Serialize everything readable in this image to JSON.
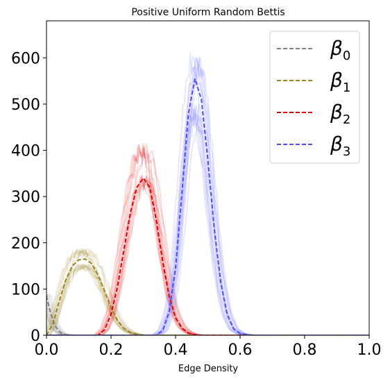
{
  "chart_data": {
    "type": "line",
    "title": "Positive Uniform Random Bettis",
    "xlabel": "Edge Density",
    "ylabel": "",
    "xlim": [
      0.0,
      1.0
    ],
    "ylim": [
      0,
      680
    ],
    "x_ticks": [
      "0.0",
      "0.2",
      "0.4",
      "0.6",
      "0.8",
      "1.0"
    ],
    "y_ticks": [
      "0",
      "100",
      "200",
      "300",
      "400",
      "500",
      "600"
    ],
    "grid": false,
    "legend_position": "top-right",
    "series": [
      {
        "name": "β0",
        "label_base": "β",
        "label_sub": "0",
        "color": "#7f7f7f",
        "peak_x": 0.0,
        "peak_y": 85,
        "x": [
          0.0,
          0.01,
          0.02,
          0.03,
          0.04,
          0.05,
          0.06,
          0.08,
          0.1,
          0.15,
          0.2,
          1.0
        ],
        "y": [
          85,
          55,
          32,
          17,
          8,
          3,
          1,
          0,
          0,
          0,
          0,
          0
        ]
      },
      {
        "name": "β1",
        "label_base": "β",
        "label_sub": "1",
        "color": "#9a8320",
        "peak_x": 0.12,
        "peak_y": 165,
        "x": [
          0.0,
          0.02,
          0.04,
          0.06,
          0.08,
          0.1,
          0.12,
          0.14,
          0.16,
          0.18,
          0.2,
          0.22,
          0.24,
          0.26,
          0.28,
          0.3,
          0.35,
          1.0
        ],
        "y": [
          0,
          25,
          75,
          120,
          150,
          163,
          165,
          155,
          130,
          95,
          60,
          32,
          15,
          6,
          2,
          0,
          0,
          0
        ]
      },
      {
        "name": "β2",
        "label_base": "β",
        "label_sub": "2",
        "color": "#dd0000",
        "peak_x": 0.3,
        "peak_y": 340,
        "x": [
          0.0,
          0.16,
          0.18,
          0.2,
          0.22,
          0.24,
          0.26,
          0.28,
          0.3,
          0.32,
          0.34,
          0.36,
          0.38,
          0.4,
          0.42,
          0.44,
          0.46,
          0.48,
          1.0
        ],
        "y": [
          0,
          0,
          12,
          45,
          105,
          185,
          265,
          320,
          340,
          320,
          250,
          160,
          85,
          38,
          15,
          5,
          1,
          0,
          0
        ]
      },
      {
        "name": "β3",
        "label_base": "β",
        "label_sub": "3",
        "color": "#4b4bff",
        "peak_x": 0.46,
        "peak_y": 555,
        "x": [
          0.0,
          0.34,
          0.36,
          0.38,
          0.4,
          0.42,
          0.44,
          0.46,
          0.48,
          0.5,
          0.52,
          0.54,
          0.56,
          0.58,
          0.6,
          0.62,
          0.64,
          1.0
        ],
        "y": [
          0,
          0,
          10,
          50,
          145,
          310,
          480,
          555,
          510,
          380,
          230,
          115,
          45,
          14,
          4,
          1,
          0,
          0
        ]
      }
    ]
  }
}
